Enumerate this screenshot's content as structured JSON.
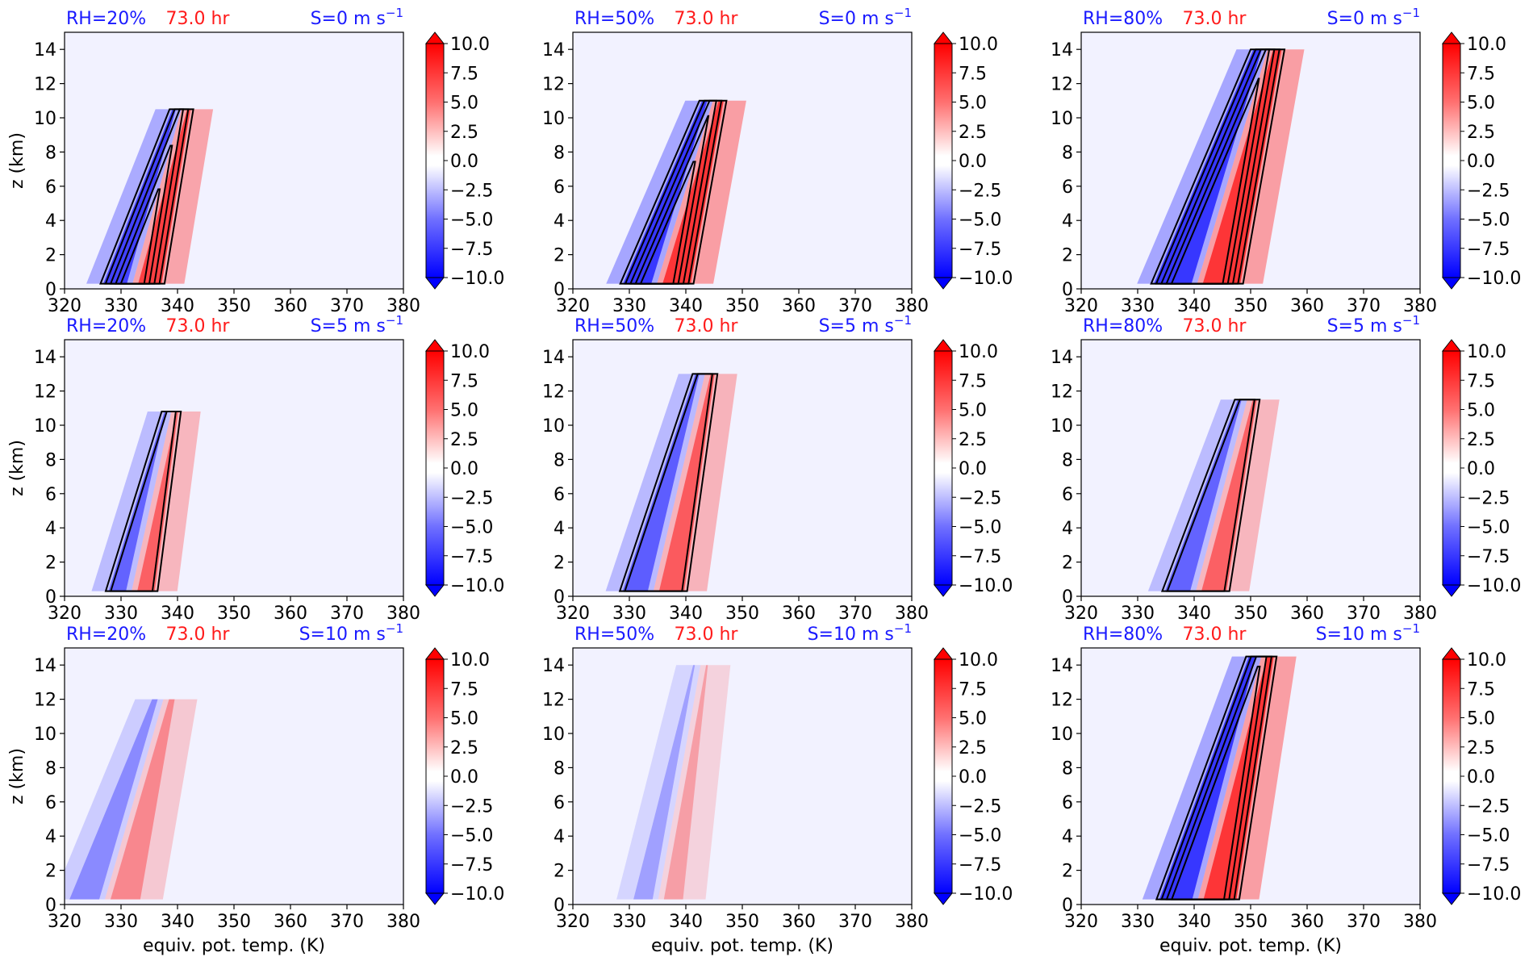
{
  "figure": {
    "time_label": "73.0 hr",
    "colors": {
      "blue_label": "#1a1aff",
      "red_label": "#ff1a1a",
      "contour": "#000000",
      "background": "#f2f2ff"
    }
  },
  "chart_data": [
    {
      "type": "heatmap",
      "panel": "a",
      "rh_label": "RH=20%",
      "time_label": "73.0 hr",
      "shear_label": "S=0 m s",
      "shear_unit_exp": "−1",
      "xlabel": "",
      "ylabel": "z (km)",
      "xlim": [
        320,
        380
      ],
      "ylim": [
        0,
        15
      ],
      "xticks": [
        "320",
        "330",
        "340",
        "350",
        "360",
        "370",
        "380"
      ],
      "yticks": [
        "0",
        "2",
        "4",
        "6",
        "8",
        "10",
        "12",
        "14"
      ],
      "colorbar": {
        "ticks": [
          "10.0",
          "7.5",
          "5.0",
          "2.5",
          "0.0",
          "−2.5",
          "−5.0",
          "−7.5",
          "−10.0"
        ],
        "range": [
          -10,
          10
        ],
        "extend": "both"
      },
      "structure": {
        "theta_min": 326,
        "theta_max": 347,
        "top": 10.5,
        "strength": 0.9,
        "contours": 5
      }
    },
    {
      "type": "heatmap",
      "panel": "b",
      "rh_label": "RH=50%",
      "time_label": "73.0 hr",
      "shear_label": "S=0 m s",
      "shear_unit_exp": "−1",
      "xlabel": "",
      "ylabel": "",
      "xlim": [
        320,
        380
      ],
      "ylim": [
        0,
        15
      ],
      "xticks": [
        "320",
        "330",
        "340",
        "350",
        "360",
        "370",
        "380"
      ],
      "yticks": [
        "0",
        "2",
        "4",
        "6",
        "8",
        "10",
        "12",
        "14"
      ],
      "colorbar": {
        "ticks": [
          "10.0",
          "7.5",
          "5.0",
          "2.5",
          "0.0",
          "−2.5",
          "−5.0",
          "−7.5",
          "−10.0"
        ],
        "range": [
          -10,
          10
        ],
        "extend": "both"
      },
      "structure": {
        "theta_min": 328,
        "theta_max": 352,
        "top": 11,
        "strength": 1.0,
        "contours": 5
      }
    },
    {
      "type": "heatmap",
      "panel": "c",
      "rh_label": "RH=80%",
      "time_label": "73.0 hr",
      "shear_label": "S=0 m s",
      "shear_unit_exp": "−1",
      "xlabel": "",
      "ylabel": "",
      "xlim": [
        320,
        380
      ],
      "ylim": [
        0,
        15
      ],
      "xticks": [
        "320",
        "330",
        "340",
        "350",
        "360",
        "370",
        "380"
      ],
      "yticks": [
        "0",
        "2",
        "4",
        "6",
        "8",
        "10",
        "12",
        "14"
      ],
      "colorbar": {
        "ticks": [
          "10.0",
          "7.5",
          "5.0",
          "2.5",
          "0.0",
          "−2.5",
          "−5.0",
          "−7.5",
          "−10.0"
        ],
        "range": [
          -10,
          10
        ],
        "extend": "both"
      },
      "structure": {
        "theta_min": 332,
        "theta_max": 362,
        "top": 14,
        "strength": 1.0,
        "contours": 5
      }
    },
    {
      "type": "heatmap",
      "panel": "d",
      "rh_label": "RH=20%",
      "time_label": "73.0 hr",
      "shear_label": "S=5 m s",
      "shear_unit_exp": "−1",
      "xlabel": "",
      "ylabel": "z (km)",
      "xlim": [
        320,
        380
      ],
      "ylim": [
        0,
        15
      ],
      "xticks": [
        "320",
        "330",
        "340",
        "350",
        "360",
        "370",
        "380"
      ],
      "yticks": [
        "0",
        "2",
        "4",
        "6",
        "8",
        "10",
        "12",
        "14"
      ],
      "colorbar": {
        "ticks": [
          "10.0",
          "7.5",
          "5.0",
          "2.5",
          "0.0",
          "−2.5",
          "−5.0",
          "−7.5",
          "−10.0"
        ],
        "range": [
          -10,
          10
        ],
        "extend": "both"
      },
      "structure": {
        "theta_min": 327,
        "theta_max": 344,
        "top": 10.8,
        "strength": 0.6,
        "contours": 2
      }
    },
    {
      "type": "heatmap",
      "panel": "e",
      "rh_label": "RH=50%",
      "time_label": "73.0 hr",
      "shear_label": "S=5 m s",
      "shear_unit_exp": "−1",
      "xlabel": "",
      "ylabel": "",
      "xlim": [
        320,
        380
      ],
      "ylim": [
        0,
        15
      ],
      "xticks": [
        "320",
        "330",
        "340",
        "350",
        "360",
        "370",
        "380"
      ],
      "yticks": [
        "0",
        "2",
        "4",
        "6",
        "8",
        "10",
        "12",
        "14"
      ],
      "colorbar": {
        "ticks": [
          "10.0",
          "7.5",
          "5.0",
          "2.5",
          "0.0",
          "−2.5",
          "−5.0",
          "−7.5",
          "−10.0"
        ],
        "range": [
          -10,
          10
        ],
        "extend": "both"
      },
      "structure": {
        "theta_min": 328,
        "theta_max": 350,
        "top": 13,
        "strength": 0.65,
        "contours": 2
      }
    },
    {
      "type": "heatmap",
      "panel": "f",
      "rh_label": "RH=80%",
      "time_label": "73.0 hr",
      "shear_label": "S=5 m s",
      "shear_unit_exp": "−1",
      "xlabel": "",
      "ylabel": "",
      "xlim": [
        320,
        380
      ],
      "ylim": [
        0,
        15
      ],
      "xticks": [
        "320",
        "330",
        "340",
        "350",
        "360",
        "370",
        "380"
      ],
      "yticks": [
        "0",
        "2",
        "4",
        "6",
        "8",
        "10",
        "12",
        "14"
      ],
      "colorbar": {
        "ticks": [
          "10.0",
          "7.5",
          "5.0",
          "2.5",
          "0.0",
          "−2.5",
          "−5.0",
          "−7.5",
          "−10.0"
        ],
        "range": [
          -10,
          10
        ],
        "extend": "both"
      },
      "structure": {
        "theta_min": 334,
        "theta_max": 356,
        "top": 11.5,
        "strength": 0.6,
        "contours": 2
      }
    },
    {
      "type": "heatmap",
      "panel": "g",
      "rh_label": "RH=20%",
      "time_label": "73.0 hr",
      "shear_label": "S=10 m s",
      "shear_unit_exp": "−1",
      "xlabel": "equiv. pot. temp. (K)",
      "ylabel": "z (km)",
      "xlim": [
        320,
        380
      ],
      "ylim": [
        0,
        15
      ],
      "xticks": [
        "320",
        "330",
        "340",
        "350",
        "360",
        "370",
        "380"
      ],
      "yticks": [
        "0",
        "2",
        "4",
        "6",
        "8",
        "10",
        "12",
        "14"
      ],
      "colorbar": {
        "ticks": [
          "10.0",
          "7.5",
          "5.0",
          "2.5",
          "0.0",
          "−2.5",
          "−5.0",
          "−7.5",
          "−10.0"
        ],
        "range": [
          -10,
          10
        ],
        "extend": "both"
      },
      "structure": {
        "theta_min": 320,
        "theta_max": 345,
        "top": 12,
        "strength": 0.3,
        "contours": 0
      }
    },
    {
      "type": "heatmap",
      "panel": "h",
      "rh_label": "RH=50%",
      "time_label": "73.0 hr",
      "shear_label": "S=10 m s",
      "shear_unit_exp": "−1",
      "xlabel": "equiv. pot. temp. (K)",
      "ylabel": "",
      "xlim": [
        320,
        380
      ],
      "ylim": [
        0,
        15
      ],
      "xticks": [
        "320",
        "330",
        "340",
        "350",
        "360",
        "370",
        "380"
      ],
      "yticks": [
        "0",
        "2",
        "4",
        "6",
        "8",
        "10",
        "12",
        "14"
      ],
      "colorbar": {
        "ticks": [
          "10.0",
          "7.5",
          "5.0",
          "2.5",
          "0.0",
          "−2.5",
          "−5.0",
          "−7.5",
          "−10.0"
        ],
        "range": [
          -10,
          10
        ],
        "extend": "both"
      },
      "structure": {
        "theta_min": 330,
        "theta_max": 348,
        "top": 14,
        "strength": 0.15,
        "contours": 0
      }
    },
    {
      "type": "heatmap",
      "panel": "i",
      "rh_label": "RH=80%",
      "time_label": "73.0 hr",
      "shear_label": "S=10 m s",
      "shear_unit_exp": "−1",
      "xlabel": "equiv. pot. temp. (K)",
      "ylabel": "",
      "xlim": [
        320,
        380
      ],
      "ylim": [
        0,
        15
      ],
      "xticks": [
        "320",
        "330",
        "340",
        "350",
        "360",
        "370",
        "380"
      ],
      "yticks": [
        "0",
        "2",
        "4",
        "6",
        "8",
        "10",
        "12",
        "14"
      ],
      "colorbar": {
        "ticks": [
          "10.0",
          "7.5",
          "5.0",
          "2.5",
          "0.0",
          "−2.5",
          "−5.0",
          "−7.5",
          "−10.0"
        ],
        "range": [
          -10,
          10
        ],
        "extend": "both"
      },
      "structure": {
        "theta_min": 333,
        "theta_max": 360,
        "top": 14.5,
        "strength": 1.0,
        "contours": 4
      }
    }
  ]
}
